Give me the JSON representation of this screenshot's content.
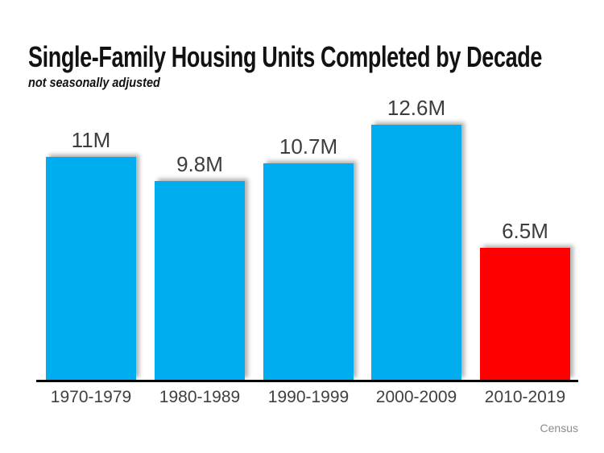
{
  "header": {
    "title": "Single-Family Housing Units Completed by Decade",
    "subtitle": "not seasonally adjusted"
  },
  "source_label": "Census",
  "colors": {
    "bar_blue": "#00AEEF",
    "bar_red": "#FF0000",
    "axis": "#000000",
    "value_text": "#3d3d3d",
    "category_text": "#404040",
    "source_text": "#8c8c8c"
  },
  "chart_data": {
    "type": "bar",
    "title": "Single-Family Housing Units Completed by Decade",
    "subtitle": "not seasonally adjusted",
    "categories": [
      "1970-1979",
      "1980-1989",
      "1990-1999",
      "2000-2009",
      "2010-2019"
    ],
    "values": [
      11,
      9.8,
      10.7,
      12.6,
      6.5
    ],
    "value_labels": [
      "11M",
      "9.8M",
      "10.7M",
      "12.6M",
      "6.5M"
    ],
    "bar_colors": [
      "#00AEEF",
      "#00AEEF",
      "#00AEEF",
      "#00AEEF",
      "#FF0000"
    ],
    "units": "millions of housing units",
    "xlabel": "",
    "ylabel": "",
    "ylim": [
      0,
      12.6
    ],
    "grid": false,
    "legend": "none",
    "source": "Census"
  }
}
